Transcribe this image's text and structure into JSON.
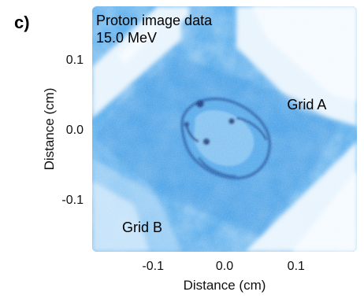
{
  "panel_label": "c)",
  "chart_data": {
    "type": "heatmap",
    "title": "Proton image data",
    "subtitle": "15.0 MeV",
    "xlabel": "Distance (cm)",
    "ylabel": "Distance (cm)",
    "xlim": [
      -0.185,
      0.185
    ],
    "ylim": [
      -0.175,
      0.175
    ],
    "x_ticks": [
      -0.1,
      0.0,
      0.1
    ],
    "x_tick_labels": [
      "-0.1",
      "0.0",
      "0.1"
    ],
    "y_ticks": [
      0.1,
      0.0,
      -0.1
    ],
    "y_tick_labels": [
      "0.1",
      "0.0",
      "-0.1"
    ],
    "colormap": [
      "#ffffff",
      "#1e90ff",
      "#0b1e6b"
    ],
    "annotations": [
      {
        "text": "Grid A",
        "x": 0.115,
        "y": 0.035
      },
      {
        "text": "Grid B",
        "x": -0.115,
        "y": -0.14
      }
    ]
  }
}
